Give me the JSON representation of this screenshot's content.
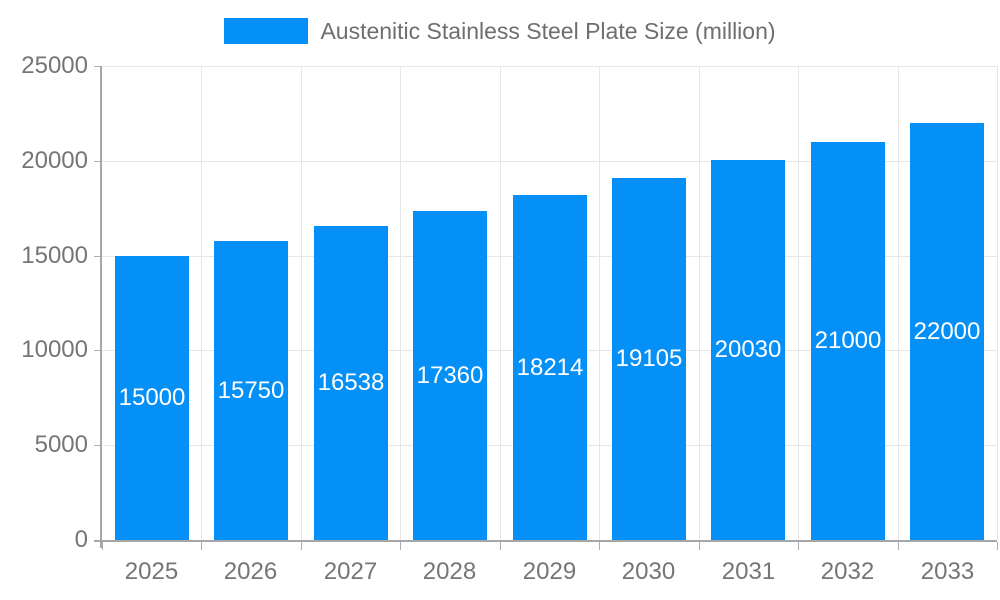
{
  "legend": {
    "label": "Austenitic Stainless Steel Plate Size (million)"
  },
  "chart_data": {
    "type": "bar",
    "title": "Austenitic Stainless Steel Plate Size (million)",
    "categories": [
      "2025",
      "2026",
      "2027",
      "2028",
      "2029",
      "2030",
      "2031",
      "2032",
      "2033"
    ],
    "series": [
      {
        "name": "Austenitic Stainless Steel Plate Size (million)",
        "values": [
          15000,
          15750,
          16538,
          17360,
          18214,
          19105,
          20030,
          21000,
          22000
        ]
      }
    ],
    "value_labels": [
      "15000",
      "15750",
      "16538",
      "17360",
      "18214",
      "19105",
      "20030",
      "21000",
      "22000"
    ],
    "xlabel": "",
    "ylabel": "",
    "ylim": [
      0,
      25000
    ],
    "yticks": [
      0,
      5000,
      10000,
      15000,
      20000,
      25000
    ],
    "ytick_labels": [
      "0",
      "5000",
      "10000",
      "15000",
      "20000",
      "25000"
    ],
    "grid": "horizontal and vertical, light gray",
    "legend_position": "top-center",
    "colors": {
      "bar": "#0590F8",
      "bar_value_text": "#FFFFFF",
      "axis_text": "#757575",
      "legend_text": "#6E6E6E",
      "grid_line": "#E6E6E6",
      "axis_line": "#A6A6A6",
      "tick": "#ADADAD",
      "background": "#FFFFFF"
    }
  }
}
